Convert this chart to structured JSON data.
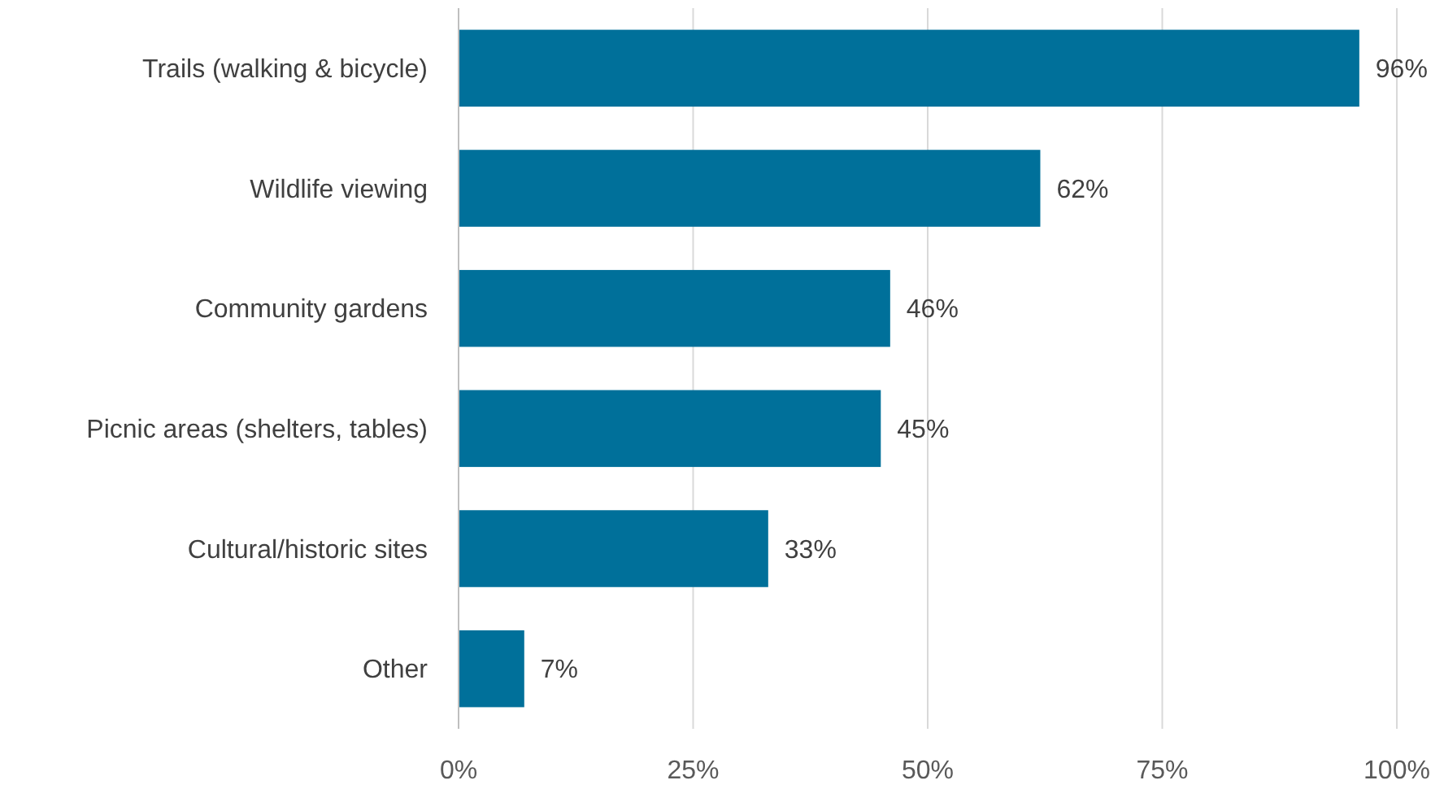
{
  "chart_data": {
    "type": "bar",
    "orientation": "horizontal",
    "categories": [
      "Trails (walking & bicycle)",
      "Wildlife viewing",
      "Community gardens",
      "Picnic areas (shelters, tables)",
      "Cultural/historic sites",
      "Other"
    ],
    "values": [
      96,
      62,
      46,
      45,
      33,
      7
    ],
    "value_labels": [
      "96%",
      "62%",
      "46%",
      "45%",
      "33%",
      "7%"
    ],
    "color": "#00709a",
    "xlim": [
      0,
      100
    ],
    "xticks": [
      {
        "value": 0,
        "label": "0%"
      },
      {
        "value": 25,
        "label": "25%"
      },
      {
        "value": 50,
        "label": "50%"
      },
      {
        "value": 75,
        "label": "75%"
      },
      {
        "value": 100,
        "label": "100%"
      }
    ],
    "grid": "x"
  }
}
